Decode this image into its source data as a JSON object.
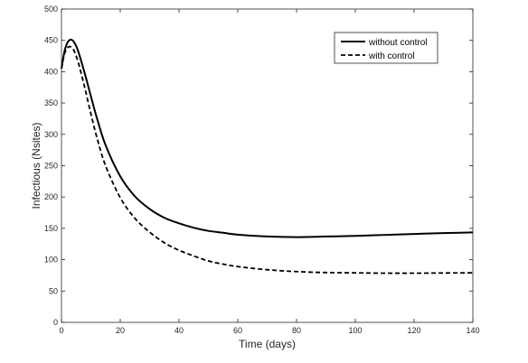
{
  "chart_data": {
    "type": "line",
    "title": "",
    "xlabel": "Time (days)",
    "ylabel": "Infectious (Nsites)",
    "xlim": [
      0,
      140
    ],
    "ylim": [
      0,
      500
    ],
    "xticks": [
      0,
      20,
      40,
      60,
      80,
      100,
      120,
      140
    ],
    "yticks": [
      0,
      50,
      100,
      150,
      200,
      250,
      300,
      350,
      400,
      450,
      500
    ],
    "grid": false,
    "legend_position": "top-right",
    "series": [
      {
        "name": "without control",
        "style": "solid",
        "color": "#000000",
        "x": [
          0,
          1,
          2,
          3,
          4,
          5,
          6,
          8,
          10,
          12,
          15,
          20,
          25,
          30,
          35,
          40,
          45,
          50,
          55,
          60,
          70,
          80,
          90,
          100,
          110,
          120,
          130,
          140
        ],
        "y": [
          405,
          432,
          446,
          451,
          449,
          441,
          428,
          396,
          361,
          327,
          283,
          233,
          201,
          181,
          167,
          158,
          151,
          146,
          143,
          140,
          137,
          136,
          137,
          138,
          139.5,
          141,
          142.5,
          143.5
        ]
      },
      {
        "name": "with control",
        "style": "dashed",
        "color": "#000000",
        "x": [
          0,
          1,
          2,
          3,
          4,
          5,
          6,
          8,
          10,
          12,
          15,
          20,
          25,
          30,
          35,
          40,
          45,
          50,
          55,
          60,
          70,
          80,
          90,
          100,
          110,
          120,
          130,
          140
        ],
        "y": [
          405,
          428,
          438,
          440,
          436,
          425,
          410,
          373,
          333,
          296,
          250,
          199,
          166,
          144,
          127,
          115,
          106,
          98,
          93,
          89,
          84,
          81,
          79.5,
          79,
          78.5,
          78.5,
          78.8,
          79
        ]
      }
    ]
  }
}
